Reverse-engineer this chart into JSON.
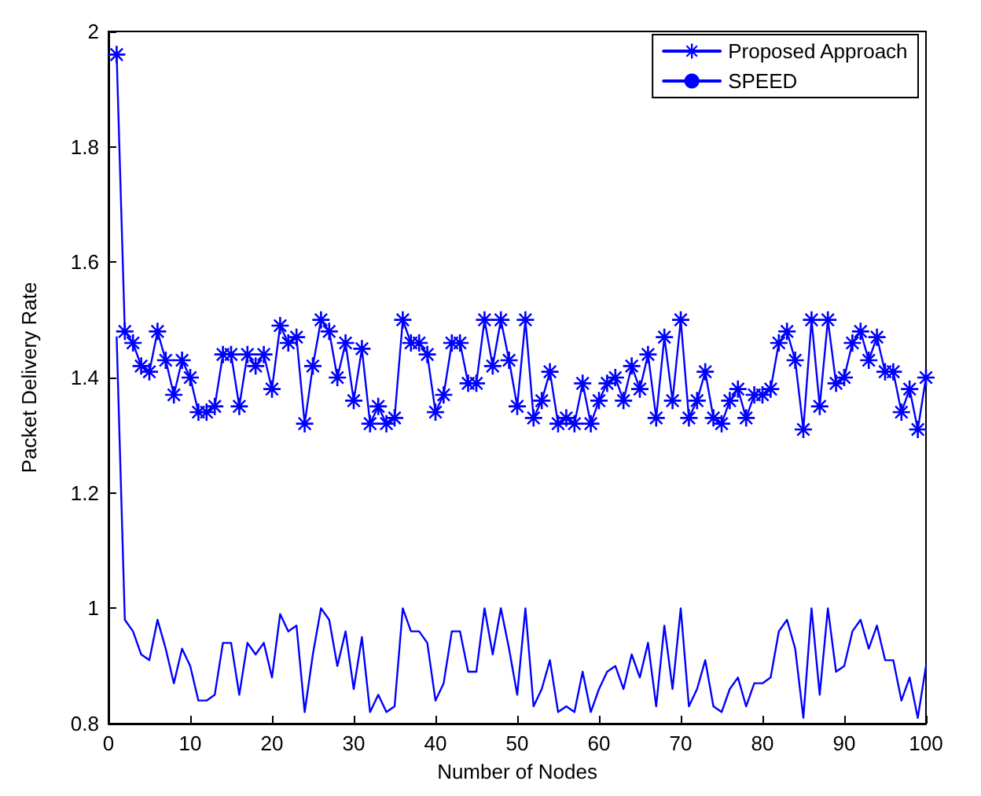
{
  "chart_data": {
    "type": "line",
    "xlabel": "Number of Nodes",
    "ylabel": "Packet Delivery Rate",
    "x": [
      1,
      2,
      3,
      4,
      5,
      6,
      7,
      8,
      9,
      10,
      11,
      12,
      13,
      14,
      15,
      16,
      17,
      18,
      19,
      20,
      21,
      22,
      23,
      24,
      25,
      26,
      27,
      28,
      29,
      30,
      31,
      32,
      33,
      34,
      35,
      36,
      37,
      38,
      39,
      40,
      41,
      42,
      43,
      44,
      45,
      46,
      47,
      48,
      49,
      50,
      51,
      52,
      53,
      54,
      55,
      56,
      57,
      58,
      59,
      60,
      61,
      62,
      63,
      64,
      65,
      66,
      67,
      68,
      69,
      70,
      71,
      72,
      73,
      74,
      75,
      76,
      77,
      78,
      79,
      80,
      81,
      82,
      83,
      84,
      85,
      86,
      87,
      88,
      89,
      90,
      91,
      92,
      93,
      94,
      95,
      96,
      97,
      98,
      99,
      100
    ],
    "series": [
      {
        "name": "Proposed Approach",
        "color": "#0000ff",
        "marker": "star",
        "values": [
          1.96,
          1.48,
          1.46,
          1.42,
          1.41,
          1.48,
          1.43,
          1.37,
          1.43,
          1.4,
          1.34,
          1.34,
          1.35,
          1.44,
          1.44,
          1.35,
          1.44,
          1.42,
          1.44,
          1.38,
          1.49,
          1.46,
          1.47,
          1.32,
          1.42,
          1.5,
          1.48,
          1.4,
          1.46,
          1.36,
          1.45,
          1.32,
          1.35,
          1.32,
          1.33,
          1.5,
          1.46,
          1.46,
          1.44,
          1.34,
          1.37,
          1.46,
          1.46,
          1.39,
          1.39,
          1.5,
          1.42,
          1.5,
          1.43,
          1.35,
          1.5,
          1.33,
          1.36,
          1.41,
          1.32,
          1.33,
          1.32,
          1.39,
          1.32,
          1.36,
          1.39,
          1.4,
          1.36,
          1.42,
          1.38,
          1.44,
          1.33,
          1.47,
          1.36,
          1.5,
          1.33,
          1.36,
          1.41,
          1.33,
          1.32,
          1.36,
          1.38,
          1.33,
          1.37,
          1.37,
          1.38,
          1.46,
          1.48,
          1.43,
          1.31,
          1.5,
          1.35,
          1.5,
          1.39,
          1.4,
          1.46,
          1.48,
          1.43,
          1.47,
          1.41,
          1.41,
          1.34,
          1.38,
          1.31,
          1.4
        ]
      },
      {
        "name": "SPEED",
        "color": "#0000ff",
        "marker": "none",
        "values": [
          1.47,
          0.98,
          0.96,
          0.92,
          0.91,
          0.98,
          0.93,
          0.87,
          0.93,
          0.9,
          0.84,
          0.84,
          0.85,
          0.94,
          0.94,
          0.85,
          0.94,
          0.92,
          0.94,
          0.88,
          0.99,
          0.96,
          0.97,
          0.82,
          0.92,
          1.0,
          0.98,
          0.9,
          0.96,
          0.86,
          0.95,
          0.82,
          0.85,
          0.82,
          0.83,
          1.0,
          0.96,
          0.96,
          0.94,
          0.84,
          0.87,
          0.96,
          0.96,
          0.89,
          0.89,
          1.0,
          0.92,
          1.0,
          0.93,
          0.85,
          1.0,
          0.83,
          0.86,
          0.91,
          0.82,
          0.83,
          0.82,
          0.89,
          0.82,
          0.86,
          0.89,
          0.9,
          0.86,
          0.92,
          0.88,
          0.94,
          0.83,
          0.97,
          0.86,
          1.0,
          0.83,
          0.86,
          0.91,
          0.83,
          0.82,
          0.86,
          0.88,
          0.83,
          0.87,
          0.87,
          0.88,
          0.96,
          0.98,
          0.93,
          0.81,
          1.0,
          0.85,
          1.0,
          0.89,
          0.9,
          0.96,
          0.98,
          0.93,
          0.97,
          0.91,
          0.91,
          0.84,
          0.88,
          0.81,
          0.9
        ]
      }
    ],
    "xlim": [
      0,
      100
    ],
    "xticks": [
      0,
      10,
      20,
      30,
      40,
      50,
      60,
      70,
      80,
      90,
      100
    ],
    "ylim": [
      0.8,
      2
    ],
    "yticks": [
      0.8,
      1,
      1.2,
      1.4,
      1.6,
      1.8,
      2
    ],
    "grid": false,
    "legend": "top right",
    "line_style": "solid"
  }
}
